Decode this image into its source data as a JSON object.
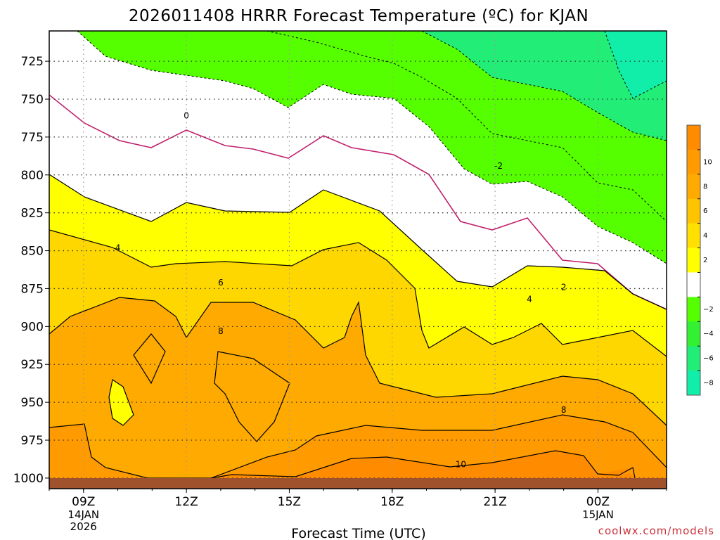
{
  "chart_data": {
    "type": "heatmap",
    "title": "2026011408 HRRR Forecast Temperature (ºC) for KJAN",
    "xlabel": "Forecast Time (UTC)",
    "ylabel": "",
    "credit": "coolwx.com/models",
    "x_ticks": [
      {
        "hour": 9,
        "label": "09Z",
        "date": [
          "14JAN",
          "2026"
        ]
      },
      {
        "hour": 12,
        "label": "12Z",
        "date": []
      },
      {
        "hour": 15,
        "label": "15Z",
        "date": []
      },
      {
        "hour": 18,
        "label": "18Z",
        "date": []
      },
      {
        "hour": 21,
        "label": "21Z",
        "date": []
      },
      {
        "hour": 24,
        "label": "00Z",
        "date": [
          "15JAN"
        ]
      }
    ],
    "xlim": [
      8,
      26
    ],
    "y_ticks": [
      725,
      750,
      775,
      800,
      825,
      850,
      875,
      900,
      925,
      950,
      975,
      1000
    ],
    "ylim_hpa": [
      705,
      1007
    ],
    "grid": true,
    "contour_levels": [
      -8,
      -6,
      -4,
      -2,
      0,
      2,
      4,
      6,
      8,
      10
    ],
    "contour_labels": [
      {
        "text": "0",
        "hour": 12.0,
        "hpa": 761
      },
      {
        "text": "-2",
        "hour": 21.1,
        "hpa": 794
      },
      {
        "text": "2",
        "hour": 23.0,
        "hpa": 874
      },
      {
        "text": "4",
        "hour": 10.0,
        "hpa": 848
      },
      {
        "text": "4",
        "hour": 22.0,
        "hpa": 882
      },
      {
        "text": "6",
        "hour": 13.0,
        "hpa": 871
      },
      {
        "text": "8",
        "hour": 13.0,
        "hpa": 903
      },
      {
        "text": "8",
        "hour": 23.0,
        "hpa": 955
      },
      {
        "text": "10",
        "hour": 20.0,
        "hpa": 991
      }
    ],
    "colorbar": [
      {
        "label": "",
        "color": "#ff8c00"
      },
      {
        "label": "10",
        "color": "#ff9b00"
      },
      {
        "label": "8",
        "color": "#ffaa00"
      },
      {
        "label": "6",
        "color": "#ffc400"
      },
      {
        "label": "4",
        "color": "#ffe000"
      },
      {
        "label": "2",
        "color": "#ffff00"
      },
      {
        "label": "",
        "color": "#ffffff"
      },
      {
        "label": "−2",
        "color": "#55ff00"
      },
      {
        "label": "−4",
        "color": "#33f033"
      },
      {
        "label": "−6",
        "color": "#22ee77"
      },
      {
        "label": "−8",
        "color": "#11eeaa"
      }
    ],
    "fills": {
      "ground": "#a0522d",
      "t_gt_10": "#ff8c00",
      "t_8_10": "#ff9b00",
      "t_6_8": "#ffaa00",
      "t_4_6": "#ffd700",
      "t_2_4": "#ffff00",
      "t_0_2": "#ffffff",
      "t_m2_0": "#ffffff",
      "t_m4_m2": "#55ff00",
      "t_lt_m6": "#11eeaa",
      "freezing_line": "#c0206e"
    }
  }
}
